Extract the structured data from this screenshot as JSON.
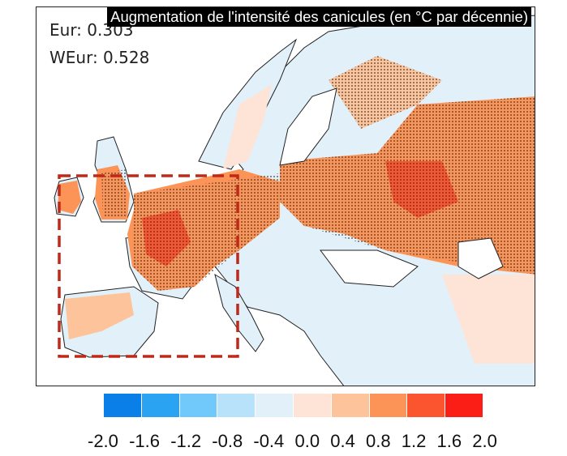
{
  "title": "Augmentation de l'intensité des canicules (en °C par décennie)",
  "stats": [
    {
      "label": "Eur: 0.303"
    },
    {
      "label": "WEur: 0.528"
    }
  ],
  "colorbar": {
    "ticks": [
      "-2.0",
      "-1.6",
      "-1.2",
      "-0.8",
      "-0.4",
      "0.0",
      "0.4",
      "0.8",
      "1.2",
      "1.6",
      "2.0"
    ],
    "colors": [
      "#0a7fe8",
      "#2aa3f2",
      "#70c8fb",
      "#b8e2fa",
      "#e2f1f9",
      "#fde4d6",
      "#fdc49c",
      "#fc9457",
      "#fb5530",
      "#fa1e16"
    ]
  },
  "region_box": {
    "name": "WEur",
    "color": "#c0281a"
  }
}
